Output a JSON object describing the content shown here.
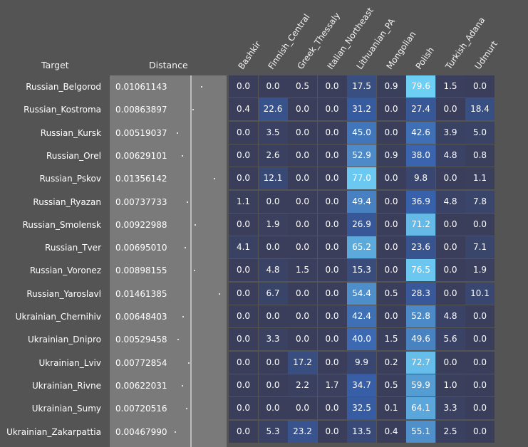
{
  "headers": {
    "target": "Target",
    "distance": "Distance"
  },
  "chart_data": {
    "type": "heatmap",
    "columns": [
      "Bashkir",
      "Finnish_Central",
      "Greek_Thessaly",
      "Italian_Northeast",
      "Lithuanian_PA",
      "Mongolian",
      "Polish",
      "Turkish_Adana",
      "Udmurt"
    ],
    "rows": [
      {
        "target": "Russian_Belgorod",
        "distance": "0.01061143",
        "values": [
          0.0,
          0.0,
          0.5,
          0.0,
          17.5,
          0.9,
          79.6,
          1.5,
          0.0
        ]
      },
      {
        "target": "Russian_Kostroma",
        "distance": "0.00863897",
        "values": [
          0.4,
          22.6,
          0.0,
          0.0,
          31.2,
          0.0,
          27.4,
          0.0,
          18.4
        ]
      },
      {
        "target": "Russian_Kursk",
        "distance": "0.00519037",
        "values": [
          0.0,
          3.5,
          0.0,
          0.0,
          45.0,
          0.0,
          42.6,
          3.9,
          5.0
        ]
      },
      {
        "target": "Russian_Orel",
        "distance": "0.00629101",
        "values": [
          0.0,
          2.6,
          0.0,
          0.0,
          52.9,
          0.9,
          38.0,
          4.8,
          0.8
        ]
      },
      {
        "target": "Russian_Pskov",
        "distance": "0.01356142",
        "values": [
          0.0,
          12.1,
          0.0,
          0.0,
          77.0,
          0.0,
          9.8,
          0.0,
          1.1
        ]
      },
      {
        "target": "Russian_Ryazan",
        "distance": "0.00737733",
        "values": [
          1.1,
          0.0,
          0.0,
          0.0,
          49.4,
          0.0,
          36.9,
          4.8,
          7.8
        ]
      },
      {
        "target": "Russian_Smolensk",
        "distance": "0.00922988",
        "values": [
          0.0,
          1.9,
          0.0,
          0.0,
          26.9,
          0.0,
          71.2,
          0.0,
          0.0
        ]
      },
      {
        "target": "Russian_Tver",
        "distance": "0.00695010",
        "values": [
          4.1,
          0.0,
          0.0,
          0.0,
          65.2,
          0.0,
          23.6,
          0.0,
          7.1
        ]
      },
      {
        "target": "Russian_Voronez",
        "distance": "0.00898155",
        "values": [
          0.0,
          4.8,
          1.5,
          0.0,
          15.3,
          0.0,
          76.5,
          0.0,
          1.9
        ]
      },
      {
        "target": "Russian_Yaroslavl",
        "distance": "0.01461385",
        "values": [
          0.0,
          6.7,
          0.0,
          0.0,
          54.4,
          0.5,
          28.3,
          0.0,
          10.1
        ]
      },
      {
        "target": "Ukrainian_Chernihiv",
        "distance": "0.00648403",
        "values": [
          0.0,
          0.0,
          0.0,
          0.0,
          42.4,
          0.0,
          52.8,
          4.8,
          0.0
        ]
      },
      {
        "target": "Ukrainian_Dnipro",
        "distance": "0.00529458",
        "values": [
          0.0,
          3.3,
          0.0,
          0.0,
          40.0,
          1.5,
          49.6,
          5.6,
          0.0
        ]
      },
      {
        "target": "Ukrainian_Lviv",
        "distance": "0.00772854",
        "values": [
          0.0,
          0.0,
          17.2,
          0.0,
          9.9,
          0.2,
          72.7,
          0.0,
          0.0
        ]
      },
      {
        "target": "Ukrainian_Rivne",
        "distance": "0.00622031",
        "values": [
          0.0,
          0.0,
          2.2,
          1.7,
          34.7,
          0.5,
          59.9,
          1.0,
          0.0
        ]
      },
      {
        "target": "Ukrainian_Sumy",
        "distance": "0.00720516",
        "values": [
          0.0,
          0.0,
          0.0,
          0.0,
          32.5,
          0.1,
          64.1,
          3.3,
          0.0
        ]
      },
      {
        "target": "Ukrainian_Zakarpattia",
        "distance": "0.00467990",
        "values": [
          0.0,
          5.3,
          23.2,
          0.0,
          13.5,
          0.4,
          55.1,
          2.5,
          0.0
        ]
      }
    ]
  },
  "colors": {
    "background": "#545454",
    "cell_low": "#3a3e5a",
    "cell_high": "#6fd0f6",
    "distance_panel": "#7a7a7a"
  }
}
